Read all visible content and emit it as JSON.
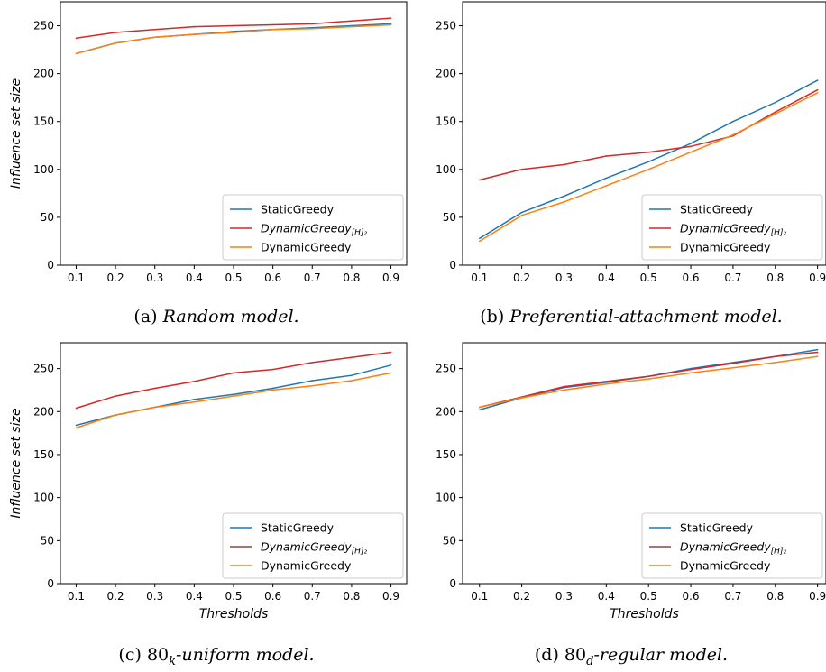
{
  "colors": {
    "static_greedy": "#1f77b4",
    "dynamic_greedy_h2": "#d62728",
    "dynamic_greedy": "#ff7f0e"
  },
  "legend": {
    "entries": [
      {
        "key": "static_greedy",
        "label": "StaticGreedy"
      },
      {
        "key": "dynamic_greedy_h2",
        "label": "DynamicGreedy",
        "subscript": "[H]₂"
      },
      {
        "key": "dynamic_greedy",
        "label": "DynamicGreedy"
      }
    ]
  },
  "chart_data": [
    {
      "type": "line",
      "caption_letter": "(a)",
      "caption_text": "Random model.",
      "ylabel": "Influence set size",
      "xlabel": "",
      "ylim": [
        0,
        275
      ],
      "yticks": [
        0,
        50,
        100,
        150,
        200,
        250
      ],
      "xlim": [
        0.06,
        0.94
      ],
      "x": [
        0.1,
        0.2,
        0.3,
        0.4,
        0.5,
        0.6,
        0.7,
        0.8,
        0.9
      ],
      "x_tick_labels": [
        "0.1",
        "0.2",
        "0.3",
        "0.4",
        "0.5",
        "0.6",
        "0.7",
        "0.8",
        "0.9"
      ],
      "legend_position": "lower-right",
      "series": [
        {
          "key": "static_greedy",
          "values": [
            221,
            232,
            238,
            241,
            244,
            246,
            248,
            250,
            252
          ]
        },
        {
          "key": "dynamic_greedy_h2",
          "values": [
            237,
            243,
            246,
            249,
            250,
            251,
            252,
            255,
            258
          ]
        },
        {
          "key": "dynamic_greedy",
          "values": [
            221,
            232,
            238,
            241,
            243,
            246,
            247,
            249,
            251
          ]
        }
      ]
    },
    {
      "type": "line",
      "caption_letter": "(b)",
      "caption_text": "Preferential-attachment model.",
      "ylabel": "",
      "xlabel": "",
      "ylim": [
        0,
        275
      ],
      "yticks": [
        0,
        50,
        100,
        150,
        200,
        250
      ],
      "xlim": [
        0.06,
        0.92
      ],
      "x": [
        0.1,
        0.2,
        0.3,
        0.4,
        0.5,
        0.6,
        0.7,
        0.8,
        0.9
      ],
      "x_tick_labels": [
        "0.1",
        "0.2",
        "0.3",
        "0.4",
        "0.5",
        "0.6",
        "0.7",
        "0.8",
        "0.9"
      ],
      "legend_position": "lower-right",
      "series": [
        {
          "key": "static_greedy",
          "values": [
            28,
            55,
            72,
            91,
            108,
            127,
            150,
            170,
            193
          ]
        },
        {
          "key": "dynamic_greedy_h2",
          "values": [
            89,
            100,
            105,
            114,
            118,
            124,
            135,
            160,
            183
          ]
        },
        {
          "key": "dynamic_greedy",
          "values": [
            25,
            52,
            66,
            83,
            100,
            118,
            136,
            158,
            180
          ]
        }
      ]
    },
    {
      "type": "line",
      "caption_letter": "(c)",
      "caption_main": "80",
      "caption_sub": "k",
      "caption_text": "-uniform model.",
      "ylabel": "Influence set size",
      "xlabel": "Thresholds",
      "ylim": [
        0,
        280
      ],
      "yticks": [
        0,
        50,
        100,
        150,
        200,
        250
      ],
      "xlim": [
        0.06,
        0.94
      ],
      "x": [
        0.1,
        0.2,
        0.3,
        0.4,
        0.5,
        0.6,
        0.7,
        0.8,
        0.9
      ],
      "x_tick_labels": [
        "0.1",
        "0.2",
        "0.3",
        "0.4",
        "0.5",
        "0.6",
        "0.7",
        "0.8",
        "0.9"
      ],
      "legend_position": "lower-right",
      "series": [
        {
          "key": "static_greedy",
          "values": [
            184,
            196,
            205,
            214,
            220,
            227,
            236,
            242,
            254
          ]
        },
        {
          "key": "dynamic_greedy_h2",
          "values": [
            204,
            218,
            227,
            235,
            245,
            249,
            257,
            263,
            269
          ]
        },
        {
          "key": "dynamic_greedy",
          "values": [
            181,
            196,
            205,
            211,
            218,
            225,
            230,
            236,
            245
          ]
        }
      ]
    },
    {
      "type": "line",
      "caption_letter": "(d)",
      "caption_main": "80",
      "caption_sub": "d",
      "caption_text": "-regular model.",
      "ylabel": "",
      "xlabel": "Thresholds",
      "ylim": [
        0,
        280
      ],
      "yticks": [
        0,
        50,
        100,
        150,
        200,
        250
      ],
      "xlim": [
        0.06,
        0.92
      ],
      "x": [
        0.1,
        0.2,
        0.3,
        0.4,
        0.5,
        0.6,
        0.7,
        0.8,
        0.9
      ],
      "x_tick_labels": [
        "0.1",
        "0.2",
        "0.3",
        "0.4",
        "0.5",
        "0.6",
        "0.7",
        "0.8",
        "0.9"
      ],
      "legend_position": "lower-right",
      "series": [
        {
          "key": "static_greedy",
          "values": [
            202,
            216,
            228,
            234,
            241,
            250,
            257,
            264,
            272
          ]
        },
        {
          "key": "dynamic_greedy_h2",
          "values": [
            205,
            217,
            229,
            235,
            241,
            249,
            256,
            264,
            269
          ]
        },
        {
          "key": "dynamic_greedy",
          "values": [
            205,
            216,
            225,
            232,
            238,
            245,
            251,
            257,
            264
          ]
        }
      ]
    }
  ]
}
